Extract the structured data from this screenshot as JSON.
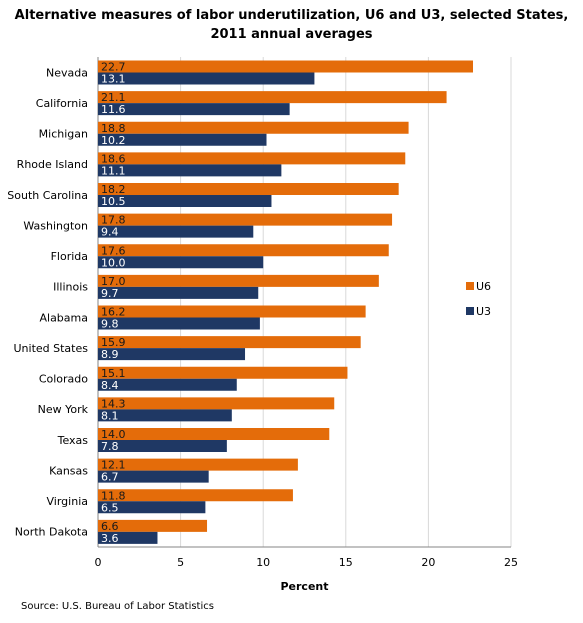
{
  "chart_data": {
    "type": "bar",
    "orientation": "horizontal",
    "title_lines": [
      "Alternative measures of labor underutilization, U6 and U3, selected States,",
      "2011 annual averages"
    ],
    "categories": [
      "Nevada",
      "California",
      "Michigan",
      "Rhode Island",
      "South Carolina",
      "Washington",
      "Florida",
      "Illinois",
      "Alabama",
      "United States",
      "Colorado",
      "New York",
      "Texas",
      "Kansas",
      "Virginia",
      "North Dakota"
    ],
    "series": [
      {
        "name": "U6",
        "color": "#E46C0A",
        "values": [
          22.7,
          21.1,
          18.8,
          18.6,
          18.2,
          17.8,
          17.6,
          17.0,
          16.2,
          15.9,
          15.1,
          14.3,
          14.0,
          12.1,
          11.8,
          6.6
        ]
      },
      {
        "name": "U3",
        "color": "#1F3864",
        "values": [
          13.1,
          11.6,
          10.2,
          11.1,
          10.5,
          9.4,
          10.0,
          9.7,
          9.8,
          8.9,
          8.4,
          8.1,
          7.8,
          6.7,
          6.5,
          3.6
        ]
      }
    ],
    "value_labels": {
      "U6": [
        "22.7",
        "21.1",
        "18.8",
        "18.6",
        "18.2",
        "17.8",
        "17.6",
        "17.0",
        "16.2",
        "15.9",
        "15.1",
        "14.3",
        "14.0",
        "12.1",
        "11.8",
        "6.6"
      ],
      "U3": [
        "13.1",
        "11.6",
        "10.2",
        "11.1",
        "10.5",
        "9.4",
        "10.0",
        "9.7",
        "9.8",
        "8.9",
        "8.4",
        "8.1",
        "7.8",
        "6.7",
        "6.5",
        "3.6"
      ]
    },
    "xlabel": "Percent",
    "xlim": [
      0,
      25
    ],
    "xticks": [
      "0",
      "5",
      "10",
      "15",
      "20",
      "25"
    ],
    "grid": true,
    "legend_position": "right"
  },
  "source": "Source: U.S. Bureau of Labor Statistics"
}
